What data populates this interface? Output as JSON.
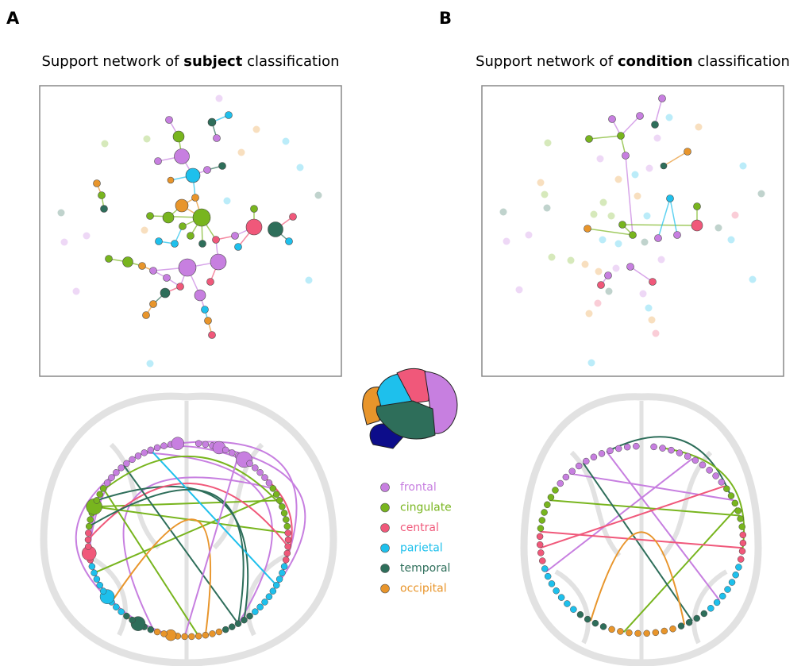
{
  "panels": [
    {
      "label": "A",
      "title": {
        "prefix": "Support network of",
        "emphasis": "subject",
        "suffix": "classification"
      }
    },
    {
      "label": "B",
      "title": {
        "prefix": "Support network of",
        "emphasis": "condition",
        "suffix": "classification"
      }
    }
  ],
  "legend": [
    {
      "label": "frontal",
      "color": "#c77fe0"
    },
    {
      "label": "cingulate",
      "color": "#78b51e"
    },
    {
      "label": "central",
      "color": "#f0587a"
    },
    {
      "label": "parietal",
      "color": "#1ec0ec"
    },
    {
      "label": "temporal",
      "color": "#2e6e5a"
    },
    {
      "label": "occipital",
      "color": "#e8952b"
    }
  ]
}
